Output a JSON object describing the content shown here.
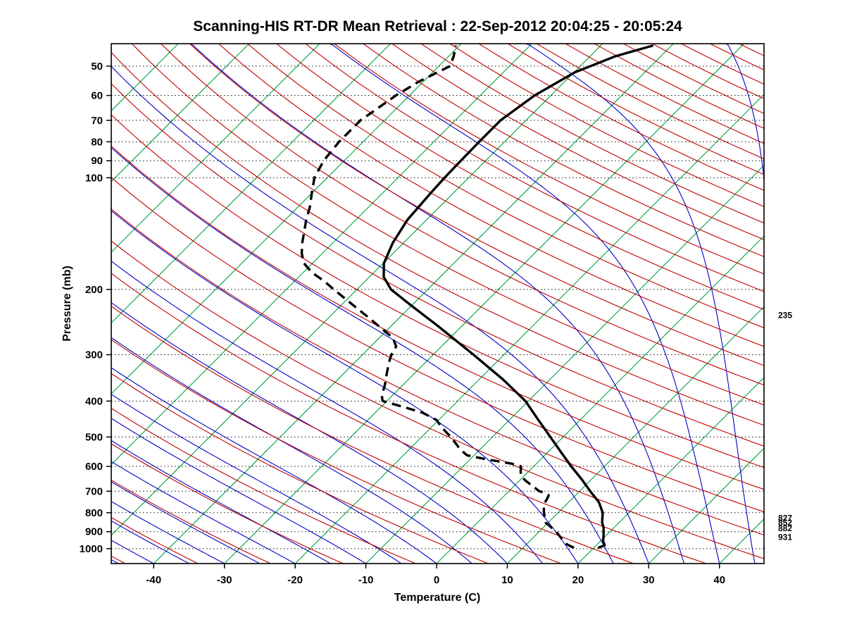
{
  "chart_data": {
    "type": "line",
    "subtype": "skew-t-log-p",
    "title": "Scanning-HIS RT-DR Mean Retrieval : 22-Sep-2012 20:04:25 - 20:05:24",
    "xlabel": "Temperature (C)",
    "ylabel": "Pressure (mb)",
    "x_ticks": [
      -40,
      -30,
      -20,
      -10,
      0,
      10,
      20,
      30,
      40
    ],
    "y_ticks": [
      50,
      60,
      70,
      80,
      90,
      100,
      200,
      300,
      400,
      500,
      600,
      700,
      800,
      900,
      1000
    ],
    "xlim": [
      -46,
      46.3
    ],
    "plim": [
      43.5,
      1097
    ],
    "skew_deg": 45,
    "grid": "dotted-horizontal-pressure-lines",
    "legend_position": "none",
    "isotherms": {
      "min": -120,
      "max": 40,
      "step": 10,
      "color": "#00A040"
    },
    "dry_adiabats": {
      "min": -50,
      "max": 330,
      "step": 10,
      "color": "#C00000"
    },
    "moist_adiabats": {
      "min": -60,
      "max": 60,
      "step": 5,
      "color": "#0000C8"
    },
    "profile_color": "#000000",
    "temperature_profile": [
      [
        995,
        20.6
      ],
      [
        980,
        21.2
      ],
      [
        955,
        20.4
      ],
      [
        920,
        19.6
      ],
      [
        880,
        18.6
      ],
      [
        850,
        17.6
      ],
      [
        800,
        16.3
      ],
      [
        750,
        14.3
      ],
      [
        700,
        11.5
      ],
      [
        650,
        8.6
      ],
      [
        600,
        5.3
      ],
      [
        550,
        1.9
      ],
      [
        500,
        -1.8
      ],
      [
        450,
        -5.9
      ],
      [
        400,
        -10.4
      ],
      [
        350,
        -16.6
      ],
      [
        300,
        -24.3
      ],
      [
        250,
        -33.6
      ],
      [
        220,
        -40.3
      ],
      [
        200,
        -45.2
      ],
      [
        185,
        -48.0
      ],
      [
        170,
        -49.9
      ],
      [
        150,
        -51.5
      ],
      [
        130,
        -52.7
      ],
      [
        110,
        -53.2
      ],
      [
        100,
        -53.4
      ],
      [
        90,
        -53.5
      ],
      [
        80,
        -53.6
      ],
      [
        70,
        -53.6
      ],
      [
        60,
        -52.3
      ],
      [
        52,
        -49.9
      ],
      [
        47,
        -46.4
      ],
      [
        44,
        -42.6
      ]
    ],
    "dewpoint_profile": [
      [
        995,
        17.2
      ],
      [
        975,
        15.8
      ],
      [
        950,
        14.6
      ],
      [
        900,
        12.4
      ],
      [
        850,
        9.6
      ],
      [
        800,
        8.0
      ],
      [
        760,
        6.8
      ],
      [
        735,
        6.5
      ],
      [
        718,
        6.2
      ],
      [
        705,
        5.0
      ],
      [
        700,
        4.3
      ],
      [
        660,
        1.2
      ],
      [
        640,
        -0.3
      ],
      [
        620,
        -1.1
      ],
      [
        600,
        -1.8
      ],
      [
        590,
        -3.5
      ],
      [
        575,
        -7.5
      ],
      [
        560,
        -11.0
      ],
      [
        540,
        -12.8
      ],
      [
        520,
        -14.3
      ],
      [
        500,
        -15.9
      ],
      [
        470,
        -18.6
      ],
      [
        450,
        -20.3
      ],
      [
        430,
        -23.3
      ],
      [
        415,
        -26.8
      ],
      [
        400,
        -30.6
      ],
      [
        385,
        -31.6
      ],
      [
        365,
        -32.4
      ],
      [
        350,
        -33.2
      ],
      [
        330,
        -34.3
      ],
      [
        310,
        -35.4
      ],
      [
        300,
        -35.9
      ],
      [
        285,
        -36.4
      ],
      [
        270,
        -38.1
      ],
      [
        255,
        -41.0
      ],
      [
        240,
        -44.0
      ],
      [
        225,
        -47.3
      ],
      [
        210,
        -50.8
      ],
      [
        200,
        -53.3
      ],
      [
        190,
        -55.8
      ],
      [
        180,
        -58.8
      ],
      [
        170,
        -61.2
      ],
      [
        160,
        -62.9
      ],
      [
        150,
        -64.3
      ],
      [
        140,
        -65.6
      ],
      [
        130,
        -67.0
      ],
      [
        120,
        -68.3
      ],
      [
        110,
        -70.0
      ],
      [
        100,
        -71.8
      ],
      [
        90,
        -72.9
      ],
      [
        80,
        -73.4
      ],
      [
        70,
        -73.4
      ],
      [
        60,
        -71.9
      ],
      [
        55,
        -70.6
      ],
      [
        50,
        -68.4
      ],
      [
        47,
        -69.3
      ],
      [
        44,
        -70.5
      ]
    ],
    "right_labels": [
      {
        "pressure": 235,
        "label": "235"
      },
      {
        "pressure": 827,
        "label": "827"
      },
      {
        "pressure": 852,
        "label": "852"
      },
      {
        "pressure": 882,
        "label": "882"
      },
      {
        "pressure": 931,
        "label": "931"
      }
    ]
  }
}
